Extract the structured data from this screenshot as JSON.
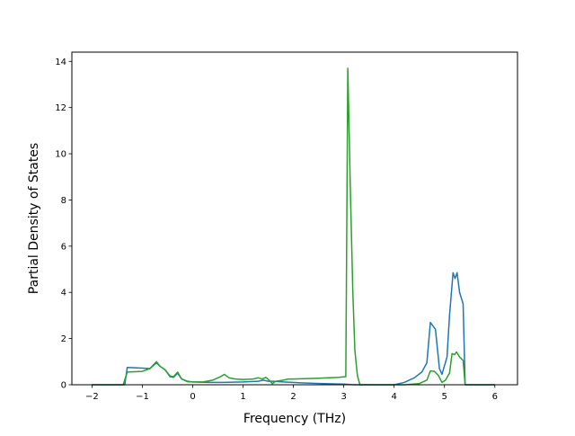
{
  "chart_data": {
    "type": "line",
    "title": "",
    "xlabel": "Frequency (THz)",
    "ylabel": "Partial Density of States",
    "xlim": [
      -2.4,
      6.45
    ],
    "ylim": [
      0,
      14.4
    ],
    "xticks": [
      -2,
      -1,
      0,
      1,
      2,
      3,
      4,
      5,
      6
    ],
    "xtick_labels": [
      "−2",
      "−1",
      "0",
      "1",
      "2",
      "3",
      "4",
      "5",
      "6"
    ],
    "yticks": [
      0,
      2,
      4,
      6,
      8,
      10,
      12,
      14
    ],
    "ytick_labels": [
      "0",
      "2",
      "4",
      "6",
      "8",
      "10",
      "12",
      "14"
    ],
    "grid": false,
    "legend": "none",
    "series": [
      {
        "color": "#1f77b4",
        "points": [
          [
            -2.0,
            0.0
          ],
          [
            -1.35,
            0.0
          ],
          [
            -1.3,
            0.75
          ],
          [
            -1.0,
            0.72
          ],
          [
            -0.85,
            0.7
          ],
          [
            -0.72,
            0.95
          ],
          [
            -0.65,
            0.8
          ],
          [
            -0.55,
            0.65
          ],
          [
            -0.45,
            0.35
          ],
          [
            -0.38,
            0.32
          ],
          [
            -0.3,
            0.5
          ],
          [
            -0.22,
            0.25
          ],
          [
            -0.1,
            0.15
          ],
          [
            0.0,
            0.12
          ],
          [
            0.3,
            0.1
          ],
          [
            0.6,
            0.1
          ],
          [
            1.0,
            0.12
          ],
          [
            1.3,
            0.15
          ],
          [
            1.4,
            0.2
          ],
          [
            1.5,
            0.15
          ],
          [
            1.6,
            0.15
          ],
          [
            1.8,
            0.12
          ],
          [
            2.2,
            0.08
          ],
          [
            2.6,
            0.05
          ],
          [
            3.0,
            0.03
          ],
          [
            3.2,
            0.0
          ],
          [
            4.0,
            0.0
          ],
          [
            4.2,
            0.1
          ],
          [
            4.4,
            0.3
          ],
          [
            4.55,
            0.55
          ],
          [
            4.65,
            0.95
          ],
          [
            4.72,
            2.7
          ],
          [
            4.82,
            2.4
          ],
          [
            4.9,
            0.7
          ],
          [
            4.95,
            0.45
          ],
          [
            5.05,
            1.2
          ],
          [
            5.1,
            3.0
          ],
          [
            5.17,
            4.85
          ],
          [
            5.21,
            4.6
          ],
          [
            5.25,
            4.85
          ],
          [
            5.3,
            4.0
          ],
          [
            5.37,
            3.5
          ],
          [
            5.41,
            0.0
          ],
          [
            6.0,
            0.0
          ]
        ]
      },
      {
        "color": "#2ca02c",
        "points": [
          [
            -2.0,
            0.0
          ],
          [
            -1.38,
            0.0
          ],
          [
            -1.3,
            0.55
          ],
          [
            -1.0,
            0.58
          ],
          [
            -0.85,
            0.7
          ],
          [
            -0.72,
            1.0
          ],
          [
            -0.65,
            0.8
          ],
          [
            -0.55,
            0.65
          ],
          [
            -0.45,
            0.38
          ],
          [
            -0.38,
            0.35
          ],
          [
            -0.3,
            0.55
          ],
          [
            -0.22,
            0.25
          ],
          [
            -0.1,
            0.13
          ],
          [
            0.0,
            0.12
          ],
          [
            0.2,
            0.12
          ],
          [
            0.4,
            0.2
          ],
          [
            0.55,
            0.35
          ],
          [
            0.63,
            0.45
          ],
          [
            0.72,
            0.3
          ],
          [
            0.85,
            0.25
          ],
          [
            1.0,
            0.23
          ],
          [
            1.2,
            0.25
          ],
          [
            1.3,
            0.3
          ],
          [
            1.38,
            0.25
          ],
          [
            1.45,
            0.32
          ],
          [
            1.52,
            0.2
          ],
          [
            1.58,
            0.05
          ],
          [
            1.65,
            0.15
          ],
          [
            1.8,
            0.2
          ],
          [
            1.9,
            0.25
          ],
          [
            2.0,
            0.25
          ],
          [
            2.5,
            0.28
          ],
          [
            2.9,
            0.32
          ],
          [
            3.04,
            0.35
          ],
          [
            3.08,
            13.7
          ],
          [
            3.13,
            8.5
          ],
          [
            3.18,
            4.0
          ],
          [
            3.22,
            1.5
          ],
          [
            3.27,
            0.4
          ],
          [
            3.32,
            0.0
          ],
          [
            4.2,
            0.0
          ],
          [
            4.5,
            0.05
          ],
          [
            4.65,
            0.2
          ],
          [
            4.72,
            0.6
          ],
          [
            4.8,
            0.58
          ],
          [
            4.88,
            0.4
          ],
          [
            4.95,
            0.1
          ],
          [
            5.02,
            0.2
          ],
          [
            5.1,
            0.5
          ],
          [
            5.15,
            1.35
          ],
          [
            5.2,
            1.3
          ],
          [
            5.24,
            1.42
          ],
          [
            5.3,
            1.2
          ],
          [
            5.37,
            1.05
          ],
          [
            5.41,
            0.0
          ],
          [
            6.0,
            0.0
          ]
        ]
      }
    ]
  }
}
